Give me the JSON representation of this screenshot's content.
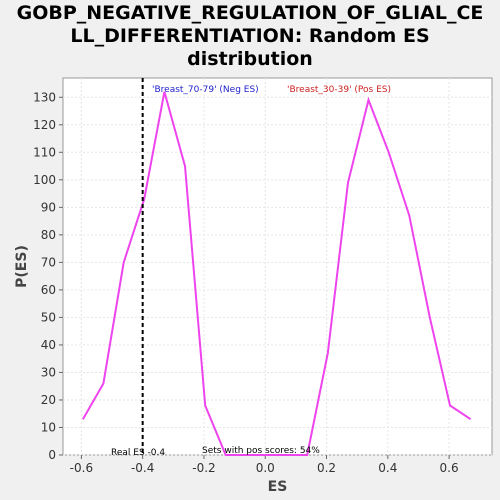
{
  "chart_data": {
    "type": "line",
    "title": "GOBP_NEGATIVE_REGULATION_OF_GLIAL_CELL_DIFFERENTIATION: Random ES distribution",
    "title_lines": [
      "GOBP_NEGATIVE_REGULATION_OF_GLIAL_CE",
      "LL_DIFFERENTIATION: Random ES",
      "distribution"
    ],
    "xlabel": "ES",
    "ylabel": "P(ES)",
    "xlim": [
      -0.66,
      0.74
    ],
    "ylim": [
      0,
      137
    ],
    "xticks": [
      -0.6,
      -0.4,
      -0.2,
      0.0,
      0.2,
      0.4,
      0.6
    ],
    "xtick_labels": [
      "-0.6",
      "-0.4",
      "-0.2",
      "0.0",
      "0.2",
      "0.4",
      "0.6"
    ],
    "yticks": [
      0,
      10,
      20,
      30,
      40,
      50,
      60,
      70,
      80,
      90,
      100,
      110,
      120,
      130
    ],
    "grid": true,
    "series": [
      {
        "color": "#ee44ee",
        "x": [
          -0.595,
          -0.528,
          -0.462,
          -0.395,
          -0.329,
          -0.262,
          -0.196,
          -0.129,
          0.004,
          0.137,
          0.204,
          0.27,
          0.337,
          0.403,
          0.47,
          0.537,
          0.603,
          0.67
        ],
        "y": [
          13,
          26,
          70,
          93,
          132,
          105,
          18,
          0,
          0,
          0,
          37,
          99,
          129,
          110,
          87,
          50,
          18,
          13
        ]
      }
    ],
    "real_es": -0.4,
    "annotations": {
      "neg_label": "'Breast_70-79' (Neg ES)",
      "pos_label": "'Breast_30-39' (Pos ES)",
      "real_es_label": "Real ES -0.4",
      "pos_scores_label": "Sets with pos scores: 54%"
    },
    "colors": {
      "neg": "#2222cc",
      "pos": "#cc2222",
      "plot_bg": "#ffffff",
      "grid": "#e6e6e6"
    }
  }
}
